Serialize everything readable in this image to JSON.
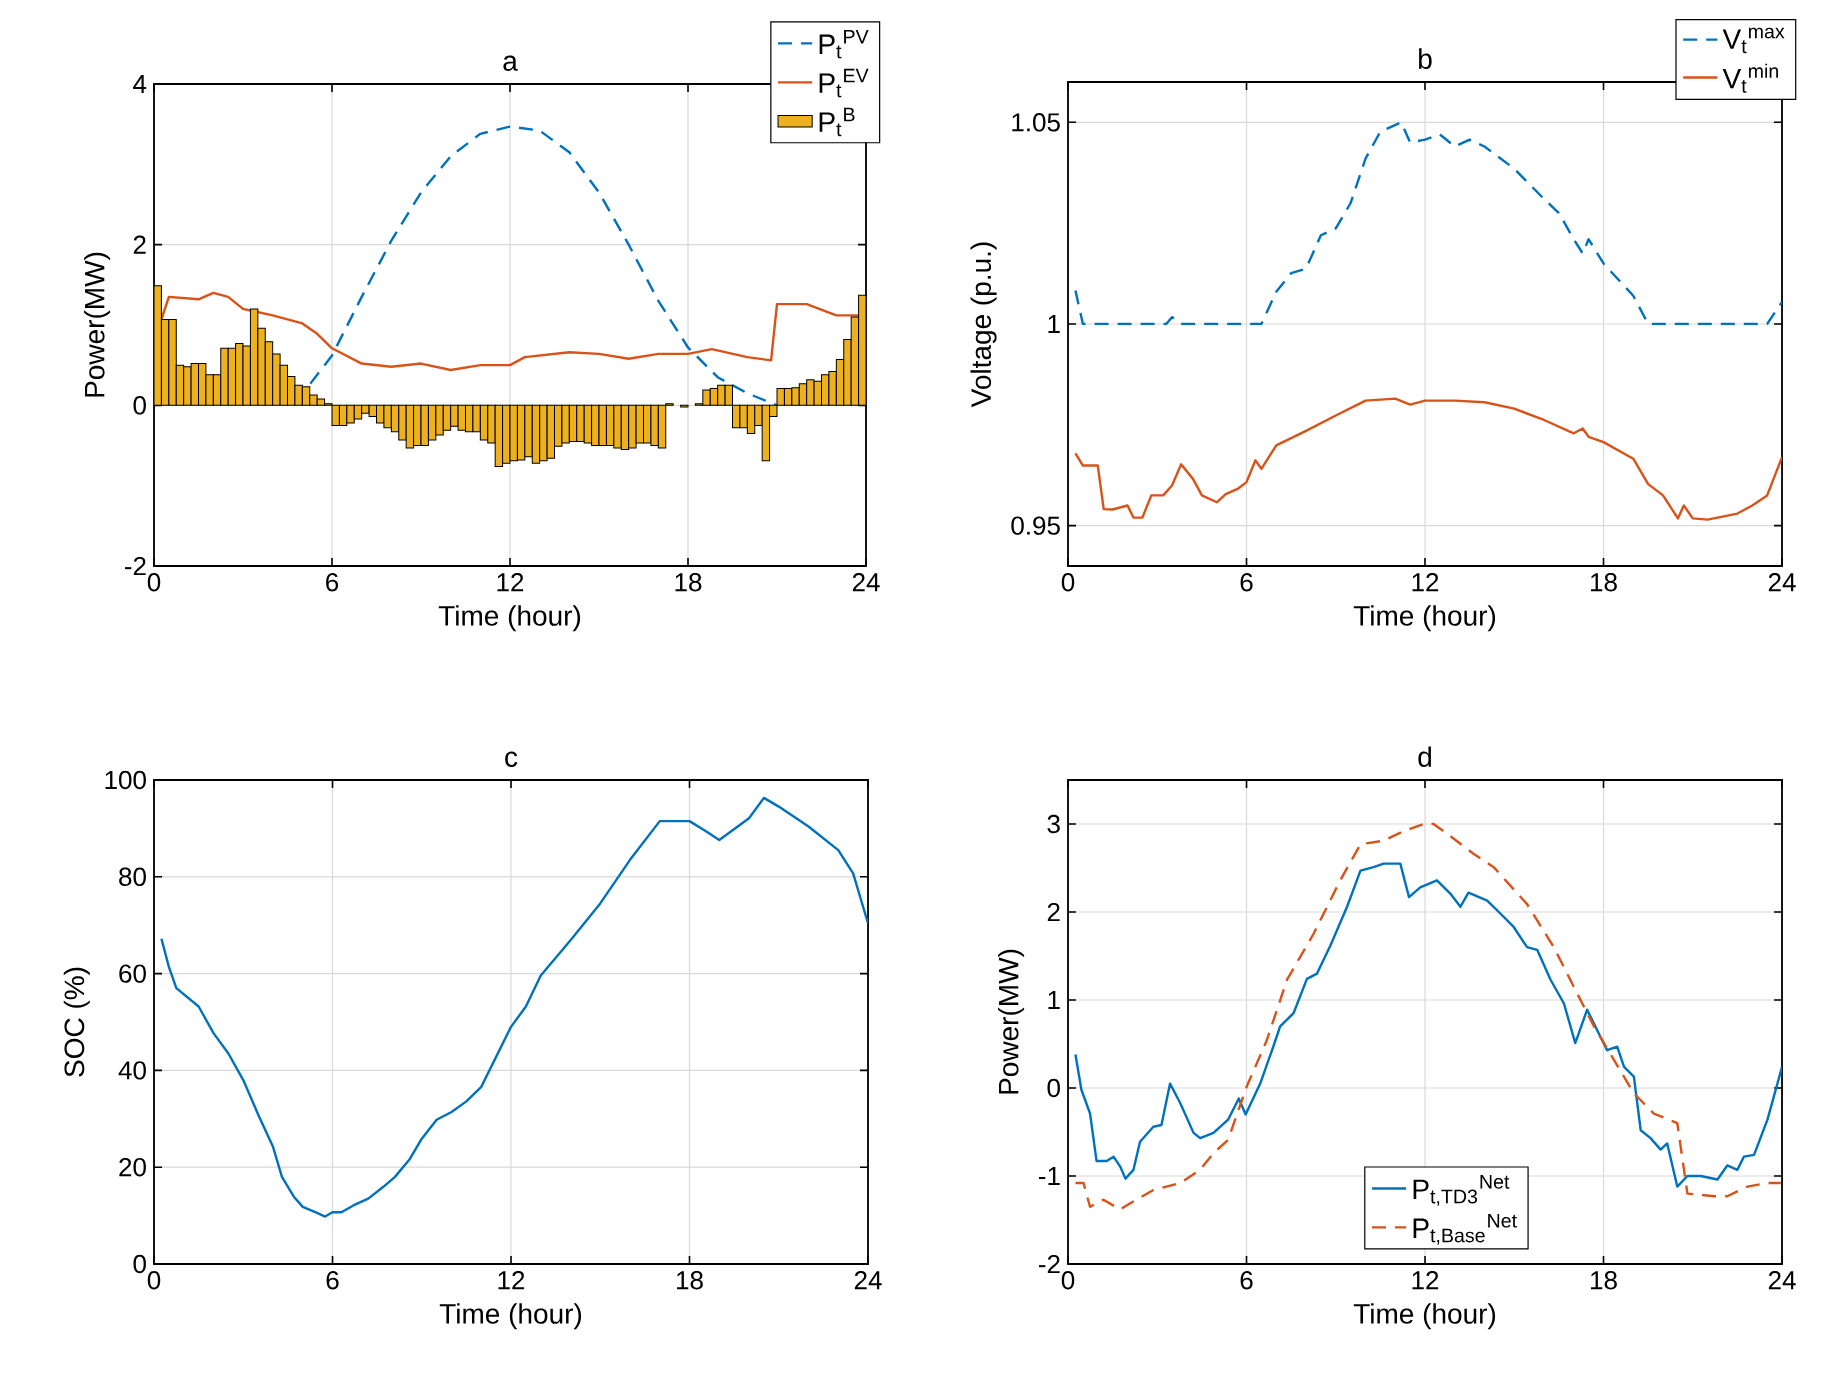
{
  "chart_data": [
    {
      "type": "line",
      "title": "a",
      "xlabel": "Time (hour)",
      "ylabel": "Power(MW)",
      "xlim": [
        0,
        24
      ],
      "xticks": [
        0,
        6,
        12,
        18,
        24
      ],
      "ylim": [
        -2,
        4
      ],
      "yticks": [
        -2,
        0,
        2,
        4
      ],
      "grid": true,
      "legend": "top right",
      "series": [
        {
          "name": "P$_{t}$$^{PV}$",
          "type": "line",
          "line_style": "dashed",
          "color": "#0072bd",
          "x": [
            5.27,
            6,
            7,
            8,
            9,
            10,
            11,
            12,
            13,
            14,
            15,
            16,
            17,
            18,
            19,
            20,
            21
          ],
          "values": [
            0.27,
            0.62,
            1.35,
            2.05,
            2.65,
            3.1,
            3.38,
            3.47,
            3.42,
            3.15,
            2.65,
            2.0,
            1.3,
            0.72,
            0.35,
            0.15,
            0.0
          ]
        },
        {
          "name": "P$_{t}$$^{EV}$",
          "type": "line",
          "line_style": "solid",
          "color": "#d95319",
          "x": [
            0.25,
            0.5,
            1.5,
            2,
            2.5,
            3,
            4,
            5,
            5.5,
            6,
            7,
            8,
            9,
            10,
            11,
            12,
            12.5,
            14,
            15,
            16,
            17,
            18,
            18.8,
            20,
            20.8,
            21,
            22,
            23,
            23.8
          ],
          "values": [
            1.07,
            1.35,
            1.32,
            1.4,
            1.35,
            1.2,
            1.12,
            1.02,
            0.89,
            0.71,
            0.52,
            0.48,
            0.52,
            0.44,
            0.5,
            0.5,
            0.6,
            0.66,
            0.64,
            0.58,
            0.64,
            0.64,
            0.7,
            0.6,
            0.56,
            1.26,
            1.26,
            1.12,
            1.12
          ]
        },
        {
          "name": "P$_{t}$$^{B}$",
          "type": "bar",
          "color": "#edb120",
          "x": [
            0.125,
            0.375,
            0.625,
            0.875,
            1.125,
            1.375,
            1.625,
            1.875,
            2.125,
            2.375,
            2.625,
            2.875,
            3.125,
            3.375,
            3.625,
            3.875,
            4.125,
            4.375,
            4.625,
            4.875,
            5.125,
            5.375,
            5.625,
            5.875,
            6.125,
            6.375,
            6.625,
            6.875,
            7.125,
            7.375,
            7.625,
            7.875,
            8.125,
            8.375,
            8.625,
            8.875,
            9.125,
            9.375,
            9.625,
            9.875,
            10.125,
            10.375,
            10.625,
            10.875,
            11.125,
            11.375,
            11.625,
            11.875,
            12.125,
            12.375,
            12.625,
            12.875,
            13.125,
            13.375,
            13.625,
            13.875,
            14.125,
            14.375,
            14.625,
            14.875,
            15.125,
            15.375,
            15.625,
            15.875,
            16.125,
            16.375,
            16.625,
            16.875,
            17.125,
            17.375,
            17.625,
            17.875,
            18.125,
            18.375,
            18.625,
            18.875,
            19.125,
            19.375,
            19.625,
            19.875,
            20.125,
            20.375,
            20.625,
            20.875,
            21.125,
            21.375,
            21.625,
            21.875,
            22.125,
            22.375,
            22.625,
            22.875,
            23.125,
            23.375,
            23.625,
            23.875
          ],
          "values": [
            1.49,
            1.07,
            1.07,
            0.5,
            0.48,
            0.52,
            0.52,
            0.38,
            0.38,
            0.71,
            0.71,
            0.77,
            0.74,
            1.2,
            0.96,
            0.79,
            0.64,
            0.5,
            0.36,
            0.25,
            0.23,
            0.13,
            0.08,
            0.02,
            -0.25,
            -0.25,
            -0.22,
            -0.17,
            -0.1,
            -0.14,
            -0.22,
            -0.28,
            -0.33,
            -0.43,
            -0.53,
            -0.5,
            -0.5,
            -0.43,
            -0.37,
            -0.31,
            -0.26,
            -0.31,
            -0.33,
            -0.33,
            -0.43,
            -0.47,
            -0.76,
            -0.72,
            -0.69,
            -0.68,
            -0.64,
            -0.72,
            -0.69,
            -0.66,
            -0.51,
            -0.47,
            -0.45,
            -0.45,
            -0.47,
            -0.5,
            -0.5,
            -0.5,
            -0.53,
            -0.55,
            -0.53,
            -0.47,
            -0.47,
            -0.5,
            -0.53,
            0.02,
            null,
            -0.02,
            null,
            0.02,
            0.19,
            0.21,
            0.25,
            0.25,
            -0.28,
            -0.28,
            -0.35,
            -0.25,
            -0.69,
            -0.14,
            0.21,
            0.21,
            0.22,
            0.27,
            0.32,
            0.3,
            0.38,
            0.42,
            0.57,
            0.82,
            1.1,
            1.37
          ]
        }
      ]
    },
    {
      "type": "line",
      "title": "b",
      "xlabel": "Time (hour)",
      "ylabel": "Voltage (p.u.)",
      "xlim": [
        0,
        24
      ],
      "xticks": [
        0,
        6,
        12,
        18,
        24
      ],
      "ylim": [
        0.94,
        1.06
      ],
      "yticks": [
        0.95,
        1,
        1.05
      ],
      "grid": true,
      "legend": "top right",
      "series": [
        {
          "name": "V$_{t}$$^{max}$",
          "line_style": "dashed",
          "color": "#0072bd",
          "x": [
            0.25,
            0.5,
            3.3,
            3.5,
            3.8,
            6.5,
            7,
            7.5,
            8,
            8.5,
            9,
            9.5,
            10,
            10.5,
            11.2,
            11.5,
            12,
            12.5,
            13,
            13.5,
            14,
            15,
            16,
            16.5,
            17,
            17.3,
            17.5,
            18,
            19,
            19.5,
            23.5,
            24
          ],
          "values": [
            1.0083,
            1.0,
            1.0,
            1.0017,
            1.0,
            1.0,
            1.008,
            1.0126,
            1.0137,
            1.022,
            1.0237,
            1.03,
            1.041,
            1.0477,
            1.05,
            1.045,
            1.0457,
            1.047,
            1.044,
            1.0457,
            1.044,
            1.0385,
            1.031,
            1.0275,
            1.021,
            1.0175,
            1.021,
            1.015,
            1.007,
            1.0,
            1.0,
            1.0055
          ]
        },
        {
          "name": "V$_{t}$$^{min}$",
          "line_style": "solid",
          "color": "#d95319",
          "x": [
            0.25,
            0.5,
            1,
            1.2,
            1.5,
            2,
            2.2,
            2.5,
            2.8,
            3.2,
            3.5,
            3.8,
            4.2,
            4.5,
            5,
            5.3,
            5.7,
            6,
            6.3,
            6.5,
            7,
            8,
            9,
            10,
            11,
            11.5,
            12,
            13,
            14,
            15,
            16,
            17,
            17.3,
            17.5,
            18,
            19,
            19.5,
            20,
            20.5,
            20.7,
            21,
            21.5,
            22.5,
            23,
            23.5,
            24
          ],
          "values": [
            0.9679,
            0.9649,
            0.9649,
            0.9541,
            0.954,
            0.955,
            0.952,
            0.952,
            0.9575,
            0.9575,
            0.96,
            0.9652,
            0.9616,
            0.9575,
            0.9558,
            0.9578,
            0.9591,
            0.9608,
            0.9662,
            0.9641,
            0.9699,
            0.9735,
            0.9773,
            0.981,
            0.9815,
            0.98,
            0.981,
            0.981,
            0.9806,
            0.979,
            0.9762,
            0.9729,
            0.9741,
            0.972,
            0.9707,
            0.9666,
            0.9603,
            0.9575,
            0.9518,
            0.955,
            0.9518,
            0.9515,
            0.953,
            0.955,
            0.9575,
            0.967
          ]
        }
      ]
    },
    {
      "type": "line",
      "title": "c",
      "xlabel": "Time (hour)",
      "ylabel": "SOC (%)",
      "xlim": [
        0,
        24
      ],
      "xticks": [
        0,
        6,
        12,
        18,
        24
      ],
      "ylim": [
        0,
        100
      ],
      "yticks": [
        0,
        20,
        40,
        60,
        80,
        100
      ],
      "grid": true,
      "series": [
        {
          "color": "#0072bd",
          "x": [
            0.25,
            0.5,
            0.75,
            1.5,
            2,
            2.5,
            3,
            3.5,
            4,
            4.3,
            4.7,
            5,
            5.5,
            5.75,
            6,
            6.3,
            6.7,
            7.2,
            7.7,
            8.1,
            8.6,
            9,
            9.5,
            10,
            10.5,
            11,
            11.5,
            12,
            12.5,
            13,
            14,
            15,
            16,
            17,
            18,
            18.5,
            19,
            20,
            20.5,
            21,
            22,
            23,
            23.5,
            24
          ],
          "values": [
            67.2,
            61.4,
            57,
            53.2,
            47.7,
            43.5,
            38,
            30.9,
            24.2,
            18,
            13.9,
            11.8,
            10.5,
            9.8,
            10.7,
            10.7,
            12.1,
            13.5,
            15.9,
            18,
            21.7,
            25.9,
            29.8,
            31.4,
            33.6,
            36.6,
            42.8,
            49,
            53.2,
            59.6,
            66.9,
            74.5,
            83.5,
            91.5,
            91.5,
            89.6,
            87.6,
            92.1,
            96.3,
            94.5,
            90.4,
            85.5,
            80.7,
            70.4
          ]
        }
      ]
    },
    {
      "type": "line",
      "title": "d",
      "xlabel": "Time (hour)",
      "ylabel": "Power(MW)",
      "xlim": [
        0,
        24
      ],
      "xticks": [
        0,
        6,
        12,
        18,
        24
      ],
      "ylim": [
        -2,
        3.5
      ],
      "yticks": [
        -2,
        -1,
        0,
        1,
        2,
        3
      ],
      "grid": true,
      "legend": "bottom",
      "series": [
        {
          "name": "P$_{t,TD3}$$^{Net}$",
          "line_style": "solid",
          "color": "#0072bd",
          "x": [
            0.25,
            0.45,
            0.74,
            0.96,
            1.3,
            1.53,
            1.75,
            1.93,
            2.2,
            2.42,
            2.87,
            3.14,
            3.43,
            3.77,
            4.22,
            4.44,
            4.89,
            5.38,
            5.74,
            5.97,
            6.46,
            6.91,
            7.13,
            7.58,
            8.03,
            8.37,
            8.82,
            9.38,
            9.83,
            10.27,
            10.61,
            11.17,
            11.46,
            11.84,
            12.4,
            12.85,
            13.19,
            13.46,
            14.09,
            14.54,
            14.98,
            15.43,
            15.77,
            16.22,
            16.67,
            17.05,
            17.45,
            17.9,
            18.12,
            18.46,
            18.69,
            19.02,
            19.25,
            19.58,
            19.92,
            20.14,
            20.48,
            20.82,
            21.27,
            21.83,
            22.16,
            22.5,
            22.72,
            23.06,
            23.51,
            24
          ],
          "values": [
            0.38,
            -0.02,
            -0.29,
            -0.83,
            -0.83,
            -0.78,
            -0.89,
            -1.03,
            -0.93,
            -0.61,
            -0.44,
            -0.42,
            0.05,
            -0.17,
            -0.51,
            -0.57,
            -0.51,
            -0.36,
            -0.12,
            -0.3,
            0.05,
            0.48,
            0.7,
            0.85,
            1.24,
            1.3,
            1.62,
            2.06,
            2.47,
            2.51,
            2.55,
            2.55,
            2.17,
            2.28,
            2.36,
            2.21,
            2.06,
            2.22,
            2.13,
            1.98,
            1.83,
            1.6,
            1.57,
            1.23,
            0.96,
            0.51,
            0.89,
            0.58,
            0.43,
            0.47,
            0.24,
            0.13,
            -0.48,
            -0.57,
            -0.7,
            -0.63,
            -1.12,
            -1.0,
            -1.0,
            -1.04,
            -0.88,
            -0.93,
            -0.78,
            -0.76,
            -0.36,
            0.24
          ]
        },
        {
          "name": "P$_{t,Base}$$^{Net}$",
          "line_style": "dashed",
          "color": "#d95319",
          "x": [
            0.25,
            0.52,
            0.74,
            1.19,
            1.75,
            2.09,
            2.87,
            3.77,
            4.44,
            4.89,
            5.38,
            6.01,
            6.68,
            7.36,
            8.25,
            9.15,
            9.83,
            10.61,
            11.28,
            11.96,
            12.29,
            12.74,
            13.64,
            14.31,
            15.43,
            16.33,
            17.0,
            17.68,
            18.35,
            19.02,
            19.69,
            20.48,
            20.82,
            21.71,
            22.16,
            22.84,
            23.51,
            23.96
          ],
          "values": [
            -1.08,
            -1.08,
            -1.35,
            -1.27,
            -1.38,
            -1.31,
            -1.16,
            -1.08,
            -0.93,
            -0.74,
            -0.59,
            0.02,
            0.54,
            1.23,
            1.75,
            2.36,
            2.77,
            2.81,
            2.92,
            3.0,
            3.0,
            2.89,
            2.66,
            2.51,
            2.09,
            1.6,
            1.15,
            0.7,
            0.32,
            -0.06,
            -0.29,
            -0.4,
            -1.2,
            -1.23,
            -1.23,
            -1.12,
            -1.08,
            -1.08
          ]
        }
      ]
    }
  ]
}
